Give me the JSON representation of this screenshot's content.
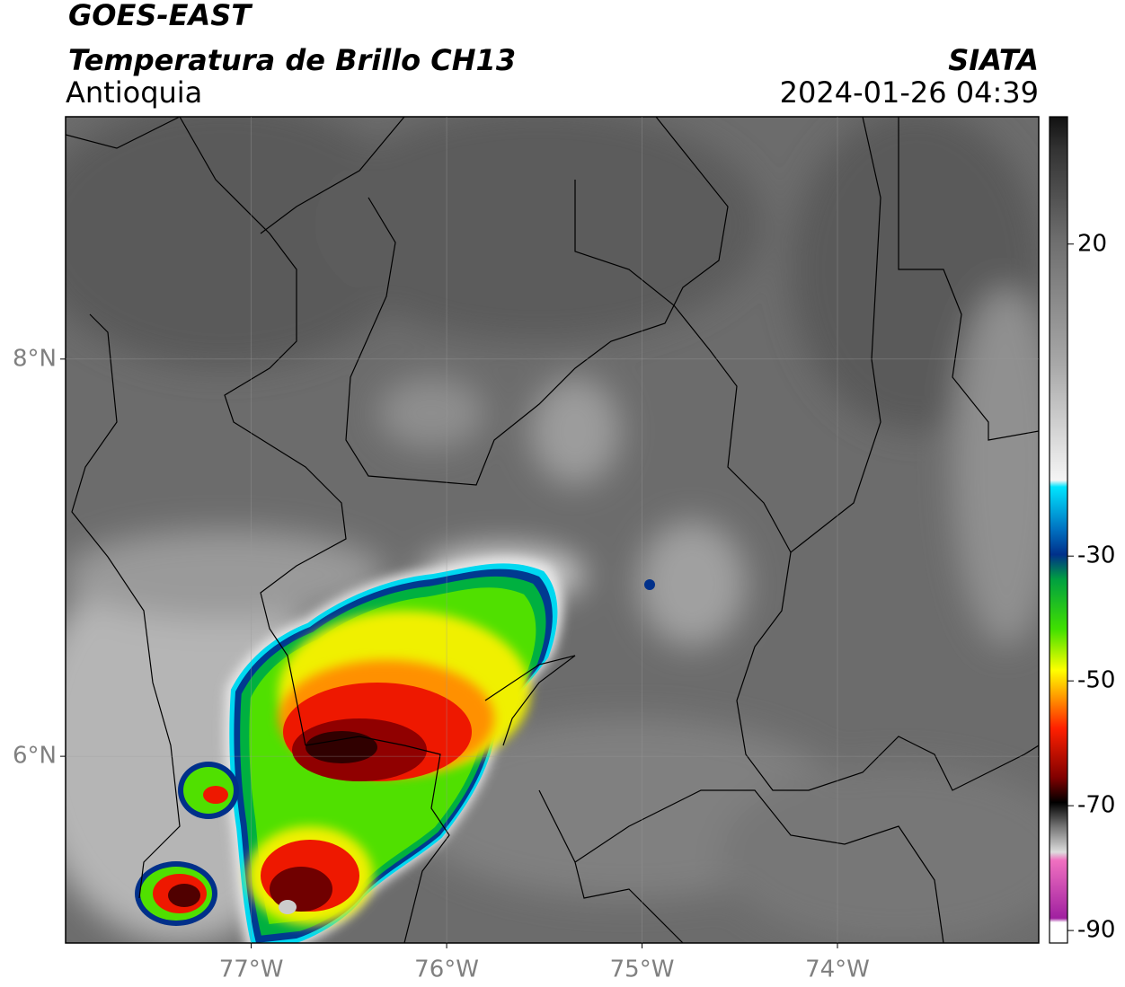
{
  "header": {
    "satellite": "GOES-EAST",
    "product": "Temperatura de Brillo CH13",
    "region": "Antioquia",
    "source": "SIATA",
    "datetime": "2024-01-26 04:39"
  },
  "map": {
    "xlim": [
      -77.95,
      -72.97
    ],
    "ylim": [
      5.06,
      9.22
    ],
    "xticks": [
      {
        "value": -77,
        "label": "77°W"
      },
      {
        "value": -76,
        "label": "76°W"
      },
      {
        "value": -75,
        "label": "75°W"
      },
      {
        "value": -74,
        "label": "74°W"
      }
    ],
    "yticks": [
      {
        "value": 6,
        "label": "6°N"
      },
      {
        "value": 8,
        "label": "8°N"
      }
    ],
    "grid": true
  },
  "colorbar": {
    "lim": [
      -92,
      40.4
    ],
    "ticks": [
      20,
      -30,
      -50,
      -70,
      -90
    ]
  }
}
